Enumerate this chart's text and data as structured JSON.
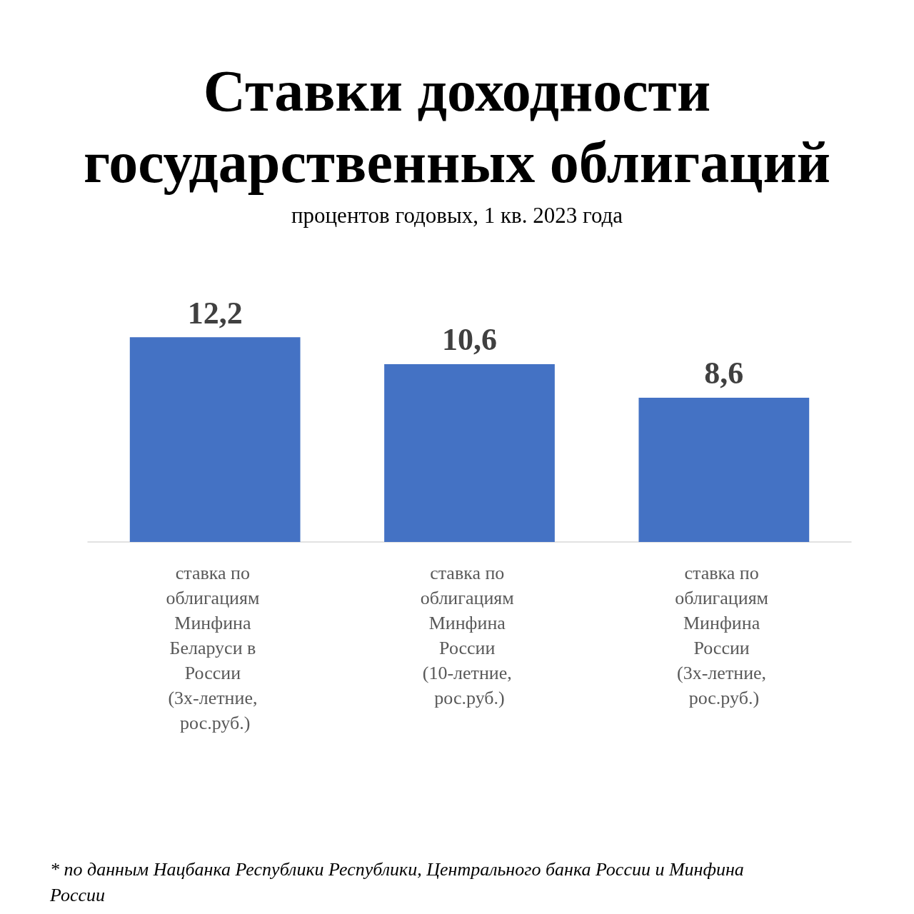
{
  "chart_data": {
    "type": "bar",
    "title": "Ставки доходности государственных облигаций",
    "subtitle": "процентов годовых, 1 кв. 2023 года",
    "categories": [
      "ставка по облигациям Минфина Беларуси в России (3х-летние, рос.руб.)",
      "ставка по облигациям Минфина России (10-летние, рос.руб.)",
      "ставка по облигациям Минфина России (3х-летние, рос.руб.)"
    ],
    "values": [
      12.2,
      10.6,
      8.6
    ],
    "value_labels": [
      "12,2",
      "10,6",
      "8,6"
    ],
    "color": "#4472c4",
    "annotations": [
      "* по данным Нацбанка Республики Республики, Центрального банка России и Минфина России"
    ]
  }
}
